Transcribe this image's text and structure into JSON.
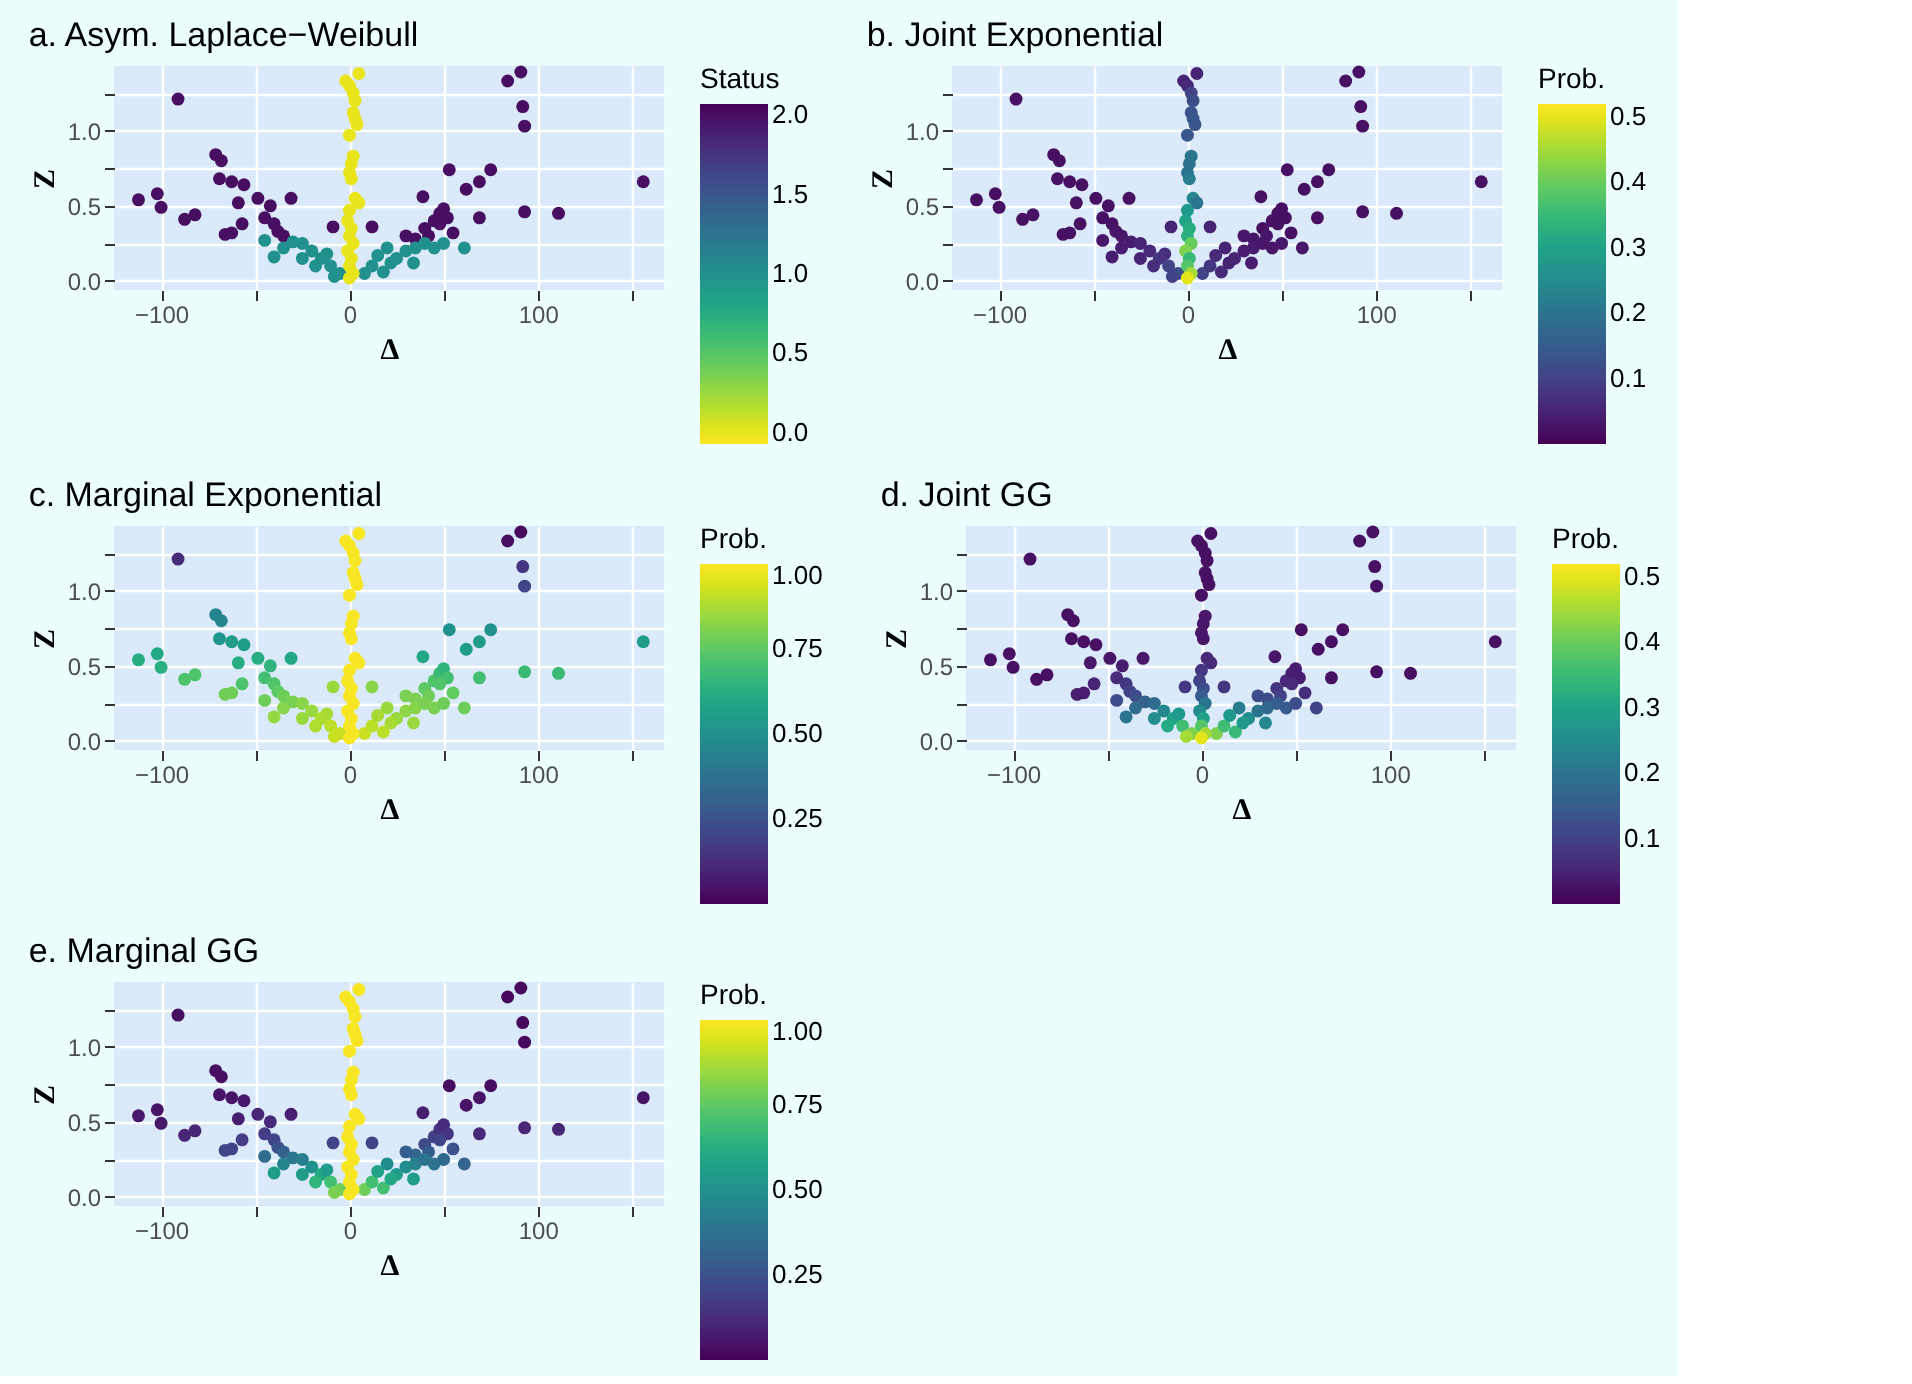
{
  "chart_data": [
    {
      "type": "scatter",
      "title": "a. Asym. Laplace−Weibull",
      "xlabel": "Δ",
      "ylabel": "Z",
      "legend_title": "Status",
      "grid": true,
      "marker": "circle",
      "xlim": [
        -125,
        167
      ],
      "ylim": [
        -0.06,
        1.43
      ],
      "xticks": [
        -100,
        {
          "value": -50,
          "label": null
        },
        0,
        {
          "value": 50,
          "label": null
        },
        100,
        {
          "value": 150,
          "label": null
        }
      ],
      "yticks": [
        {
          "value": 0,
          "label": "0.0"
        },
        {
          "value": 0.25,
          "label": null
        },
        {
          "value": 0.5,
          "label": "0.5"
        },
        {
          "value": 0.75,
          "label": null
        },
        {
          "value": 1,
          "label": "1.0"
        },
        {
          "value": 1.25,
          "label": null
        }
      ],
      "clim": [
        2.07,
        -0.07
      ],
      "cticks": [
        {
          "value": 0,
          "label": "0.0"
        },
        {
          "value": 0.5,
          "label": "0.5"
        },
        {
          "value": 1,
          "label": "1.0"
        },
        {
          "value": 1.5,
          "label": "1.5"
        },
        {
          "value": 2,
          "label": "2.0"
        }
      ],
      "x": [
        -91,
        -112,
        -102,
        -100,
        -87.5,
        -82,
        -71,
        -68,
        -69,
        -62.5,
        -56,
        -59,
        -66,
        -62.5,
        -57,
        -48.6,
        -42,
        -45,
        -40,
        -38,
        -35,
        -31,
        -8.7,
        12,
        39,
        53,
        62,
        69,
        75,
        69,
        84,
        91,
        92,
        93,
        93,
        111,
        156,
        40,
        45,
        48,
        50,
        52,
        42,
        35,
        30,
        48,
        55,
        -45,
        -40,
        -35,
        -30,
        -25,
        -20,
        -15,
        -10,
        -5,
        -12,
        -25,
        -18,
        -8,
        8,
        12,
        15,
        20,
        25,
        30,
        35,
        40,
        45,
        50,
        61,
        34,
        18,
        22,
        -2,
        0,
        5,
        2,
        3,
        2,
        3,
        4,
        0,
        2,
        1,
        0,
        1,
        3,
        5,
        0,
        -1,
        1,
        0,
        2,
        -1,
        1,
        0,
        2,
        0
      ],
      "values": [
        1.21,
        0.54,
        0.58,
        0.49,
        0.41,
        0.44,
        0.84,
        0.8,
        0.68,
        0.66,
        0.64,
        0.52,
        0.31,
        0.32,
        0.38,
        0.55,
        0.5,
        0.42,
        0.38,
        0.33,
        0.3,
        0.55,
        0.36,
        0.36,
        0.56,
        0.74,
        0.61,
        0.66,
        0.74,
        0.42,
        1.33,
        1.39,
        1.16,
        1.03,
        0.46,
        0.45,
        0.66,
        0.35,
        0.4,
        0.45,
        0.48,
        0.42,
        0.3,
        0.28,
        0.3,
        0.38,
        0.32,
        0.27,
        0.16,
        0.22,
        0.26,
        0.25,
        0.2,
        0.15,
        0.1,
        0.05,
        0.18,
        0.15,
        0.1,
        0.03,
        0.05,
        0.1,
        0.17,
        0.22,
        0.15,
        0.2,
        0.22,
        0.25,
        0.22,
        0.25,
        0.22,
        0.12,
        0.06,
        0.12,
        1.33,
        1.3,
        1.38,
        1.25,
        1.2,
        1.12,
        1.08,
        1.04,
        0.97,
        0.83,
        0.78,
        0.72,
        0.68,
        0.55,
        0.52,
        0.47,
        0.4,
        0.35,
        0.3,
        0.25,
        0.2,
        0.15,
        0.1,
        0.05,
        0.02
      ],
      "cvalues": [
        2,
        2,
        2,
        2,
        2,
        2,
        2,
        2,
        2,
        2,
        2,
        2,
        2,
        2,
        2,
        2,
        2,
        2,
        2,
        2,
        2,
        2,
        2,
        2,
        2,
        2,
        2,
        2,
        2,
        2,
        2,
        2,
        2,
        2,
        2,
        2,
        2,
        2,
        2,
        2,
        2,
        2,
        2,
        2,
        2,
        2,
        2,
        1,
        1,
        1,
        1,
        1,
        1,
        1,
        1,
        1,
        1,
        1,
        1,
        1,
        1,
        1,
        1,
        1,
        1,
        1,
        1,
        1,
        1,
        1,
        1,
        1,
        1,
        1,
        0,
        0,
        0,
        0,
        0,
        0,
        0,
        0,
        0,
        0,
        0,
        0,
        0,
        0,
        0,
        0,
        0,
        0,
        0,
        0,
        0,
        0,
        0,
        0,
        0
      ]
    },
    {
      "type": "scatter",
      "title": "b. Joint Exponential",
      "xlabel": "Δ",
      "ylabel": "Z",
      "legend_title": "Prob.",
      "grid": true,
      "marker": "circle",
      "xlim": [
        -125,
        167
      ],
      "ylim": [
        -0.06,
        1.43
      ],
      "xticks": [
        -100,
        {
          "value": -50,
          "label": null
        },
        0,
        {
          "value": 50,
          "label": null
        },
        100,
        {
          "value": 150,
          "label": null
        }
      ],
      "yticks": [
        {
          "value": 0,
          "label": "0.0"
        },
        {
          "value": 0.25,
          "label": null
        },
        {
          "value": 0.5,
          "label": "0.5"
        },
        {
          "value": 0.75,
          "label": null
        },
        {
          "value": 1,
          "label": "1.0"
        },
        {
          "value": 1.25,
          "label": null
        }
      ],
      "clim": [
        0,
        0.52
      ],
      "cticks": [
        0.1,
        0.2,
        0.3,
        0.4,
        0.5
      ],
      "x": [
        -91,
        -112,
        -102,
        -100,
        -87.5,
        -82,
        -71,
        -68,
        -69,
        -62.5,
        -56,
        -59,
        -66,
        -62.5,
        -57,
        -48.6,
        -42,
        -45,
        -40,
        -38,
        -35,
        -31,
        -8.7,
        12,
        39,
        53,
        62,
        69,
        75,
        69,
        84,
        91,
        92,
        93,
        93,
        111,
        156,
        40,
        45,
        48,
        50,
        52,
        42,
        35,
        30,
        48,
        55,
        -45,
        -40,
        -35,
        -30,
        -25,
        -20,
        -15,
        -10,
        -5,
        -12,
        -25,
        -18,
        -8,
        8,
        12,
        15,
        20,
        25,
        30,
        35,
        40,
        45,
        50,
        61,
        34,
        18,
        22,
        -2,
        0,
        5,
        2,
        3,
        2,
        3,
        4,
        0,
        2,
        1,
        0,
        1,
        3,
        5,
        0,
        -1,
        1,
        0,
        2,
        -1,
        1,
        0,
        2,
        0
      ],
      "values": [
        1.21,
        0.54,
        0.58,
        0.49,
        0.41,
        0.44,
        0.84,
        0.8,
        0.68,
        0.66,
        0.64,
        0.52,
        0.31,
        0.32,
        0.38,
        0.55,
        0.5,
        0.42,
        0.38,
        0.33,
        0.3,
        0.55,
        0.36,
        0.36,
        0.56,
        0.74,
        0.61,
        0.66,
        0.74,
        0.42,
        1.33,
        1.39,
        1.16,
        1.03,
        0.46,
        0.45,
        0.66,
        0.35,
        0.4,
        0.45,
        0.48,
        0.42,
        0.3,
        0.28,
        0.3,
        0.38,
        0.32,
        0.27,
        0.16,
        0.22,
        0.26,
        0.25,
        0.2,
        0.15,
        0.1,
        0.05,
        0.18,
        0.15,
        0.1,
        0.03,
        0.05,
        0.1,
        0.17,
        0.22,
        0.15,
        0.2,
        0.22,
        0.25,
        0.22,
        0.25,
        0.22,
        0.12,
        0.06,
        0.12,
        1.33,
        1.3,
        1.38,
        1.25,
        1.2,
        1.12,
        1.08,
        1.04,
        0.97,
        0.83,
        0.78,
        0.72,
        0.68,
        0.55,
        0.52,
        0.47,
        0.4,
        0.35,
        0.3,
        0.25,
        0.2,
        0.15,
        0.1,
        0.05,
        0.02
      ],
      "cvalues": [
        0.02,
        0.02,
        0.02,
        0.02,
        0.02,
        0.02,
        0.02,
        0.02,
        0.02,
        0.02,
        0.02,
        0.02,
        0.02,
        0.02,
        0.02,
        0.02,
        0.02,
        0.02,
        0.02,
        0.03,
        0.03,
        0.02,
        0.05,
        0.05,
        0.02,
        0.02,
        0.02,
        0.02,
        0.02,
        0.02,
        0.02,
        0.02,
        0.02,
        0.02,
        0.02,
        0.02,
        0.02,
        0.02,
        0.02,
        0.02,
        0.02,
        0.02,
        0.03,
        0.03,
        0.03,
        0.02,
        0.02,
        0.03,
        0.04,
        0.04,
        0.04,
        0.05,
        0.06,
        0.08,
        0.1,
        0.12,
        0.07,
        0.05,
        0.07,
        0.1,
        0.1,
        0.08,
        0.06,
        0.05,
        0.05,
        0.04,
        0.04,
        0.03,
        0.03,
        0.03,
        0.03,
        0.04,
        0.06,
        0.05,
        0.05,
        0.06,
        0.05,
        0.1,
        0.12,
        0.13,
        0.14,
        0.14,
        0.14,
        0.2,
        0.2,
        0.2,
        0.22,
        0.24,
        0.2,
        0.28,
        0.3,
        0.32,
        0.33,
        0.4,
        0.42,
        0.35,
        0.38,
        0.45,
        0.5
      ]
    },
    {
      "type": "scatter",
      "title": "c. Marginal Exponential",
      "xlabel": "Δ",
      "ylabel": "Z",
      "legend_title": "Prob.",
      "grid": true,
      "marker": "circle",
      "xlim": [
        -125,
        167
      ],
      "ylim": [
        -0.06,
        1.43
      ],
      "xticks": [
        -100,
        {
          "value": -50,
          "label": null
        },
        0,
        {
          "value": 50,
          "label": null
        },
        100,
        {
          "value": 150,
          "label": null
        }
      ],
      "yticks": [
        {
          "value": 0,
          "label": "0.0"
        },
        {
          "value": 0.25,
          "label": null
        },
        {
          "value": 0.5,
          "label": "0.5"
        },
        {
          "value": 0.75,
          "label": null
        },
        {
          "value": 1,
          "label": "1.0"
        },
        {
          "value": 1.25,
          "label": null
        }
      ],
      "clim": [
        0,
        1
      ],
      "cticks": [
        {
          "value": 0.25,
          "label": "0.25"
        },
        {
          "value": 0.5,
          "label": "0.50"
        },
        {
          "value": 0.75,
          "label": "0.75"
        },
        {
          "value": 1,
          "label": "1.00"
        }
      ],
      "x": [
        -91,
        -112,
        -102,
        -100,
        -87.5,
        -82,
        -71,
        -68,
        -69,
        -62.5,
        -56,
        -59,
        -66,
        -62.5,
        -57,
        -48.6,
        -42,
        -45,
        -40,
        -38,
        -35,
        -31,
        -8.7,
        12,
        39,
        53,
        62,
        69,
        75,
        69,
        84,
        91,
        92,
        93,
        93,
        111,
        156,
        40,
        45,
        48,
        50,
        52,
        42,
        35,
        30,
        48,
        55,
        -45,
        -40,
        -35,
        -30,
        -25,
        -20,
        -15,
        -10,
        -5,
        -12,
        -25,
        -18,
        -8,
        8,
        12,
        15,
        20,
        25,
        30,
        35,
        40,
        45,
        50,
        61,
        34,
        18,
        22,
        -2,
        0,
        5,
        2,
        3,
        2,
        3,
        4,
        0,
        2,
        1,
        0,
        1,
        3,
        5,
        0,
        -1,
        1,
        0,
        2,
        -1,
        1,
        0,
        2,
        0
      ],
      "values": [
        1.21,
        0.54,
        0.58,
        0.49,
        0.41,
        0.44,
        0.84,
        0.8,
        0.68,
        0.66,
        0.64,
        0.52,
        0.31,
        0.32,
        0.38,
        0.55,
        0.5,
        0.42,
        0.38,
        0.33,
        0.3,
        0.55,
        0.36,
        0.36,
        0.56,
        0.74,
        0.61,
        0.66,
        0.74,
        0.42,
        1.33,
        1.39,
        1.16,
        1.03,
        0.46,
        0.45,
        0.66,
        0.35,
        0.4,
        0.45,
        0.48,
        0.42,
        0.3,
        0.28,
        0.3,
        0.38,
        0.32,
        0.27,
        0.16,
        0.22,
        0.26,
        0.25,
        0.2,
        0.15,
        0.1,
        0.05,
        0.18,
        0.15,
        0.1,
        0.03,
        0.05,
        0.1,
        0.17,
        0.22,
        0.15,
        0.2,
        0.22,
        0.25,
        0.22,
        0.25,
        0.22,
        0.12,
        0.06,
        0.12,
        1.33,
        1.3,
        1.38,
        1.25,
        1.2,
        1.12,
        1.08,
        1.04,
        0.97,
        0.83,
        0.78,
        0.72,
        0.68,
        0.55,
        0.52,
        0.47,
        0.4,
        0.35,
        0.3,
        0.25,
        0.2,
        0.15,
        0.1,
        0.05,
        0.02
      ],
      "cvalues": [
        0.12,
        0.62,
        0.6,
        0.63,
        0.72,
        0.72,
        0.45,
        0.45,
        0.52,
        0.55,
        0.55,
        0.62,
        0.78,
        0.78,
        0.72,
        0.62,
        0.65,
        0.7,
        0.72,
        0.75,
        0.78,
        0.6,
        0.85,
        0.82,
        0.6,
        0.5,
        0.55,
        0.55,
        0.5,
        0.7,
        0.03,
        0.02,
        0.15,
        0.2,
        0.68,
        0.68,
        0.55,
        0.75,
        0.72,
        0.68,
        0.65,
        0.7,
        0.78,
        0.8,
        0.8,
        0.73,
        0.76,
        0.78,
        0.84,
        0.82,
        0.8,
        0.82,
        0.85,
        0.88,
        0.9,
        0.92,
        0.87,
        0.85,
        0.88,
        0.92,
        0.92,
        0.9,
        0.87,
        0.85,
        0.85,
        0.83,
        0.82,
        0.8,
        0.8,
        0.78,
        0.78,
        0.85,
        0.9,
        0.87,
        0.99,
        0.99,
        0.99,
        0.99,
        0.99,
        0.99,
        0.99,
        0.99,
        0.99,
        0.99,
        0.99,
        0.99,
        0.99,
        0.99,
        0.99,
        0.99,
        0.99,
        0.99,
        0.99,
        0.99,
        0.99,
        0.99,
        0.99,
        0.99,
        0.99
      ]
    },
    {
      "type": "scatter",
      "title": "d. Joint GG",
      "xlabel": "Δ",
      "ylabel": "Z",
      "legend_title": "Prob.",
      "grid": true,
      "marker": "circle",
      "xlim": [
        -125,
        167
      ],
      "ylim": [
        -0.06,
        1.43
      ],
      "xticks": [
        -100,
        {
          "value": -50,
          "label": null
        },
        0,
        {
          "value": 50,
          "label": null
        },
        100,
        {
          "value": 150,
          "label": null
        }
      ],
      "yticks": [
        {
          "value": 0,
          "label": "0.0"
        },
        {
          "value": 0.25,
          "label": null
        },
        {
          "value": 0.5,
          "label": "0.5"
        },
        {
          "value": 0.75,
          "label": null
        },
        {
          "value": 1,
          "label": "1.0"
        },
        {
          "value": 1.25,
          "label": null
        }
      ],
      "clim": [
        0,
        0.52
      ],
      "cticks": [
        0.1,
        0.2,
        0.3,
        0.4,
        0.5
      ],
      "x": [
        -91,
        -112,
        -102,
        -100,
        -87.5,
        -82,
        -71,
        -68,
        -69,
        -62.5,
        -56,
        -59,
        -66,
        -62.5,
        -57,
        -48.6,
        -42,
        -45,
        -40,
        -38,
        -35,
        -31,
        -8.7,
        12,
        39,
        53,
        62,
        69,
        75,
        69,
        84,
        91,
        92,
        93,
        93,
        111,
        156,
        40,
        45,
        48,
        50,
        52,
        42,
        35,
        30,
        48,
        55,
        -45,
        -40,
        -35,
        -30,
        -25,
        -20,
        -15,
        -10,
        -5,
        -12,
        -25,
        -18,
        -8,
        8,
        12,
        15,
        20,
        25,
        30,
        35,
        40,
        45,
        50,
        61,
        34,
        18,
        22,
        -2,
        0,
        5,
        2,
        3,
        2,
        3,
        4,
        0,
        2,
        1,
        0,
        1,
        3,
        5,
        0,
        -1,
        1,
        0,
        2,
        -1,
        1,
        0,
        2,
        0
      ],
      "values": [
        1.21,
        0.54,
        0.58,
        0.49,
        0.41,
        0.44,
        0.84,
        0.8,
        0.68,
        0.66,
        0.64,
        0.52,
        0.31,
        0.32,
        0.38,
        0.55,
        0.5,
        0.42,
        0.38,
        0.33,
        0.3,
        0.55,
        0.36,
        0.36,
        0.56,
        0.74,
        0.61,
        0.66,
        0.74,
        0.42,
        1.33,
        1.39,
        1.16,
        1.03,
        0.46,
        0.45,
        0.66,
        0.35,
        0.4,
        0.45,
        0.48,
        0.42,
        0.3,
        0.28,
        0.3,
        0.38,
        0.32,
        0.27,
        0.16,
        0.22,
        0.26,
        0.25,
        0.2,
        0.15,
        0.1,
        0.05,
        0.18,
        0.15,
        0.1,
        0.03,
        0.05,
        0.1,
        0.17,
        0.22,
        0.15,
        0.2,
        0.22,
        0.25,
        0.22,
        0.25,
        0.22,
        0.12,
        0.06,
        0.12,
        1.33,
        1.3,
        1.38,
        1.25,
        1.2,
        1.12,
        1.08,
        1.04,
        0.97,
        0.83,
        0.78,
        0.72,
        0.68,
        0.55,
        0.52,
        0.47,
        0.4,
        0.35,
        0.3,
        0.25,
        0.2,
        0.15,
        0.1,
        0.05,
        0.02
      ],
      "cvalues": [
        0.02,
        0.02,
        0.02,
        0.02,
        0.02,
        0.02,
        0.02,
        0.02,
        0.02,
        0.02,
        0.02,
        0.03,
        0.04,
        0.04,
        0.05,
        0.03,
        0.04,
        0.06,
        0.08,
        0.1,
        0.12,
        0.03,
        0.08,
        0.08,
        0.03,
        0.02,
        0.02,
        0.02,
        0.02,
        0.02,
        0.02,
        0.02,
        0.02,
        0.02,
        0.02,
        0.02,
        0.02,
        0.08,
        0.06,
        0.04,
        0.04,
        0.04,
        0.1,
        0.12,
        0.12,
        0.06,
        0.07,
        0.12,
        0.2,
        0.18,
        0.16,
        0.18,
        0.24,
        0.3,
        0.36,
        0.42,
        0.28,
        0.25,
        0.32,
        0.45,
        0.42,
        0.36,
        0.28,
        0.22,
        0.25,
        0.2,
        0.18,
        0.15,
        0.15,
        0.12,
        0.1,
        0.24,
        0.35,
        0.28,
        0.02,
        0.02,
        0.02,
        0.02,
        0.02,
        0.02,
        0.02,
        0.02,
        0.02,
        0.03,
        0.03,
        0.03,
        0.03,
        0.06,
        0.06,
        0.08,
        0.1,
        0.12,
        0.15,
        0.2,
        0.25,
        0.3,
        0.38,
        0.45,
        0.5
      ]
    },
    {
      "type": "scatter",
      "title": "e. Marginal GG",
      "xlabel": "Δ",
      "ylabel": "Z",
      "legend_title": "Prob.",
      "grid": true,
      "marker": "circle",
      "xlim": [
        -125,
        167
      ],
      "ylim": [
        -0.06,
        1.43
      ],
      "xticks": [
        -100,
        {
          "value": -50,
          "label": null
        },
        0,
        {
          "value": 50,
          "label": null
        },
        100,
        {
          "value": 150,
          "label": null
        }
      ],
      "yticks": [
        {
          "value": 0,
          "label": "0.0"
        },
        {
          "value": 0.25,
          "label": null
        },
        {
          "value": 0.5,
          "label": "0.5"
        },
        {
          "value": 0.75,
          "label": null
        },
        {
          "value": 1,
          "label": "1.0"
        },
        {
          "value": 1.25,
          "label": null
        }
      ],
      "clim": [
        0,
        1
      ],
      "cticks": [
        {
          "value": 0.25,
          "label": "0.25"
        },
        {
          "value": 0.5,
          "label": "0.50"
        },
        {
          "value": 0.75,
          "label": "0.75"
        },
        {
          "value": 1,
          "label": "1.00"
        }
      ],
      "x": [
        -91,
        -112,
        -102,
        -100,
        -87.5,
        -82,
        -71,
        -68,
        -69,
        -62.5,
        -56,
        -59,
        -66,
        -62.5,
        -57,
        -48.6,
        -42,
        -45,
        -40,
        -38,
        -35,
        -31,
        -8.7,
        12,
        39,
        53,
        62,
        69,
        75,
        69,
        84,
        91,
        92,
        93,
        93,
        111,
        156,
        40,
        45,
        48,
        50,
        52,
        42,
        35,
        30,
        48,
        55,
        -45,
        -40,
        -35,
        -30,
        -25,
        -20,
        -15,
        -10,
        -5,
        -12,
        -25,
        -18,
        -8,
        8,
        12,
        15,
        20,
        25,
        30,
        35,
        40,
        45,
        50,
        61,
        34,
        18,
        22,
        -2,
        0,
        5,
        2,
        3,
        2,
        3,
        4,
        0,
        2,
        1,
        0,
        1,
        3,
        5,
        0,
        -1,
        1,
        0,
        2,
        -1,
        1,
        0,
        2,
        0
      ],
      "values": [
        1.21,
        0.54,
        0.58,
        0.49,
        0.41,
        0.44,
        0.84,
        0.8,
        0.68,
        0.66,
        0.64,
        0.52,
        0.31,
        0.32,
        0.38,
        0.55,
        0.5,
        0.42,
        0.38,
        0.33,
        0.3,
        0.55,
        0.36,
        0.36,
        0.56,
        0.74,
        0.61,
        0.66,
        0.74,
        0.42,
        1.33,
        1.39,
        1.16,
        1.03,
        0.46,
        0.45,
        0.66,
        0.35,
        0.4,
        0.45,
        0.48,
        0.42,
        0.3,
        0.28,
        0.3,
        0.38,
        0.32,
        0.27,
        0.16,
        0.22,
        0.26,
        0.25,
        0.2,
        0.15,
        0.1,
        0.05,
        0.18,
        0.15,
        0.1,
        0.03,
        0.05,
        0.1,
        0.17,
        0.22,
        0.15,
        0.2,
        0.22,
        0.25,
        0.22,
        0.25,
        0.22,
        0.12,
        0.06,
        0.12,
        1.33,
        1.3,
        1.38,
        1.25,
        1.2,
        1.12,
        1.08,
        1.04,
        0.97,
        0.83,
        0.78,
        0.72,
        0.68,
        0.55,
        0.52,
        0.47,
        0.4,
        0.35,
        0.3,
        0.25,
        0.2,
        0.15,
        0.1,
        0.05,
        0.02
      ],
      "cvalues": [
        0.03,
        0.06,
        0.05,
        0.06,
        0.1,
        0.1,
        0.03,
        0.03,
        0.05,
        0.05,
        0.06,
        0.08,
        0.2,
        0.2,
        0.18,
        0.1,
        0.12,
        0.18,
        0.2,
        0.25,
        0.3,
        0.08,
        0.2,
        0.2,
        0.08,
        0.03,
        0.05,
        0.05,
        0.03,
        0.12,
        0.02,
        0.02,
        0.02,
        0.02,
        0.1,
        0.1,
        0.05,
        0.22,
        0.18,
        0.14,
        0.12,
        0.15,
        0.28,
        0.32,
        0.3,
        0.2,
        0.25,
        0.35,
        0.55,
        0.45,
        0.4,
        0.42,
        0.5,
        0.6,
        0.7,
        0.78,
        0.55,
        0.55,
        0.65,
        0.8,
        0.78,
        0.7,
        0.58,
        0.48,
        0.55,
        0.48,
        0.44,
        0.38,
        0.38,
        0.34,
        0.32,
        0.55,
        0.7,
        0.6,
        0.99,
        0.99,
        0.99,
        0.99,
        0.99,
        0.99,
        0.99,
        0.99,
        0.99,
        0.99,
        0.99,
        0.99,
        0.99,
        0.99,
        0.99,
        0.99,
        0.99,
        0.99,
        0.99,
        0.99,
        0.99,
        0.99,
        0.99,
        0.99,
        0.99
      ]
    }
  ]
}
